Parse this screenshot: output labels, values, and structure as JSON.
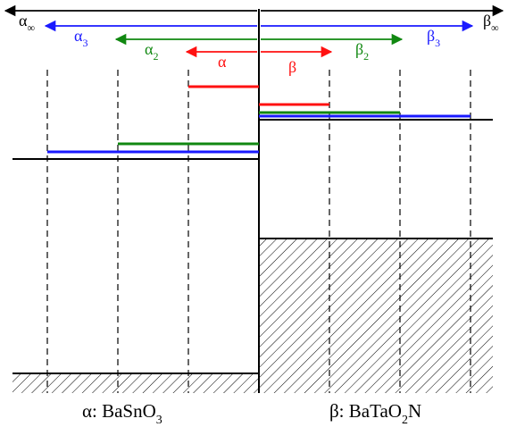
{
  "colors": {
    "black": "#000000",
    "blue": "#1a1aff",
    "green": "#118811",
    "red": "#ff1111"
  },
  "arrows": {
    "alpha_inf": {
      "symbol": "α",
      "sub": "∞"
    },
    "beta_inf": {
      "symbol": "β",
      "sub": "∞"
    },
    "alpha_3": {
      "symbol": "α",
      "sub": "3"
    },
    "beta_3": {
      "symbol": "β",
      "sub": "3"
    },
    "alpha_2": {
      "symbol": "α",
      "sub": "2"
    },
    "beta_2": {
      "symbol": "β",
      "sub": "2"
    },
    "alpha_1": {
      "symbol": "α",
      "sub": ""
    },
    "beta_1": {
      "symbol": "β",
      "sub": ""
    }
  },
  "materials": {
    "left": {
      "prefix": "α: BaSnO",
      "sub": "3",
      "suffix": ""
    },
    "right": {
      "prefix": "β: BaTaO",
      "sub": "2",
      "suffix": "N"
    }
  }
}
